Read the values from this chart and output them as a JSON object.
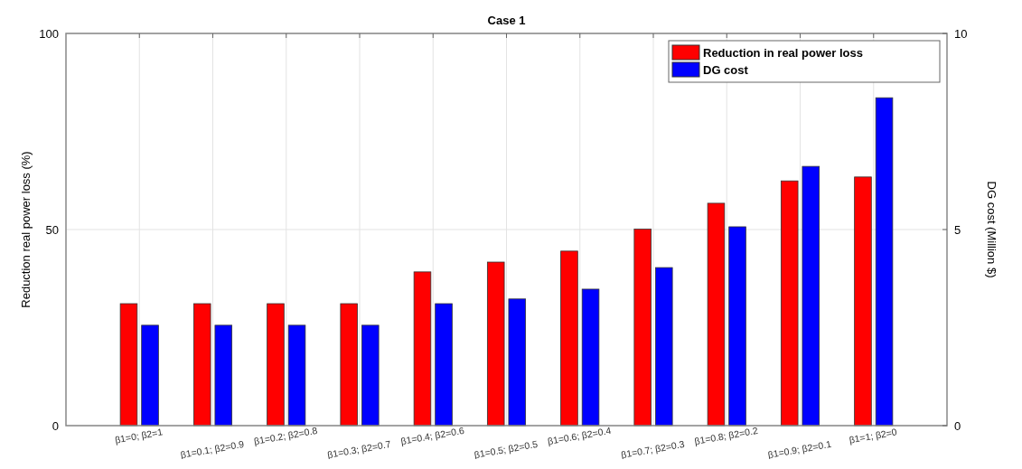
{
  "chart_data": {
    "type": "bar",
    "title": "Case 1",
    "ylabel": "Reduction real power loss (%)",
    "y2label": "DG cost (Million $)",
    "categories": [
      "β1=0; β2=1",
      "β1=0.1; β2=0.9",
      "β1=0.2; β2=0.8",
      "β1=0.3; β2=0.7",
      "β1=0.4; β2=0.6",
      "β1=0.5; β2=0.5",
      "β1=0.6; β2=0.4",
      "β1=0.7; β2=0.3",
      "β1=0.8; β2=0.2",
      "β1=0.9; β2=0.1",
      "β1=1; β2=0"
    ],
    "series": [
      {
        "name": "Reduction in real power loss",
        "color": "#ff0000",
        "values": [
          31.1,
          31.1,
          31.1,
          31.1,
          39.2,
          41.7,
          44.5,
          50.1,
          56.7,
          62.4,
          63.4
        ]
      },
      {
        "name": "DG cost",
        "color": "#0000ff",
        "axis": "y2",
        "values": [
          2.56,
          2.56,
          2.56,
          2.56,
          3.11,
          3.23,
          3.48,
          4.03,
          5.07,
          6.61,
          8.36
        ]
      }
    ],
    "ylim": [
      0,
      100
    ],
    "yticks": [
      0,
      50,
      100
    ],
    "y2lim": [
      0,
      10
    ],
    "y2ticks": [
      0,
      5,
      10
    ],
    "grid": true,
    "legend": "top right"
  }
}
